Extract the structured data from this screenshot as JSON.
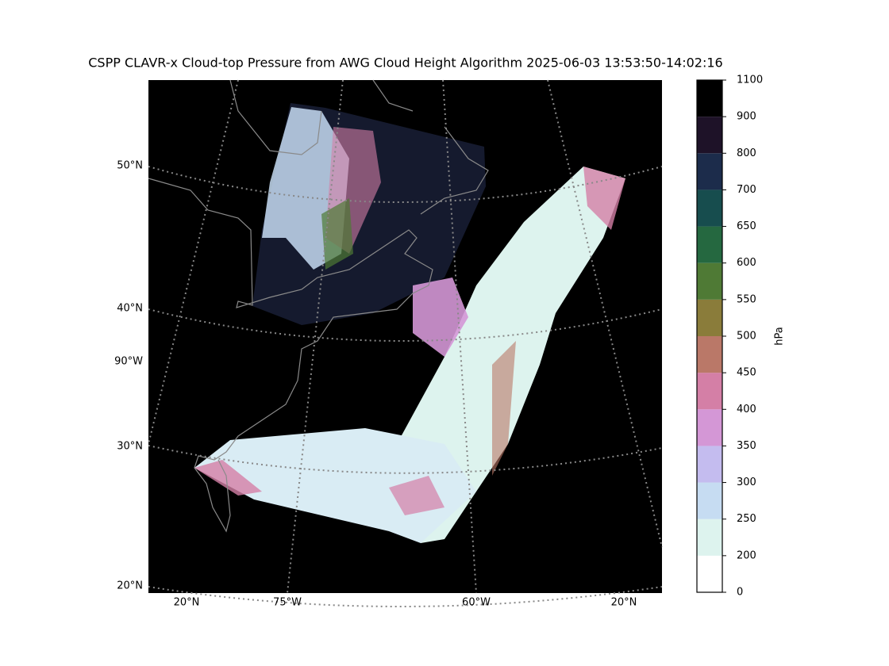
{
  "title": "CSPP CLAVR-x Cloud-top Pressure from AWG Cloud Height Algorithm 2025-06-03 13:53:50-14:02:16",
  "left_labels": [
    "50°N",
    "40°N",
    "90°W",
    "30°N",
    "20°N"
  ],
  "bottom_labels": [
    "20°N",
    "75°W",
    "60°W",
    "20°N"
  ],
  "colorbar": {
    "label": "hPa",
    "levels": [
      0,
      200,
      250,
      300,
      350,
      400,
      450,
      500,
      550,
      600,
      650,
      700,
      800,
      900,
      1100
    ],
    "colors": [
      "#ffffff",
      "#ddf3ee",
      "#c6dcf2",
      "#c4bcef",
      "#d497d6",
      "#d47fa6",
      "#ba7868",
      "#8a7c3a",
      "#4f7a35",
      "#256840",
      "#174d4e",
      "#1c2c4b",
      "#1e1228",
      "#000000"
    ]
  }
}
